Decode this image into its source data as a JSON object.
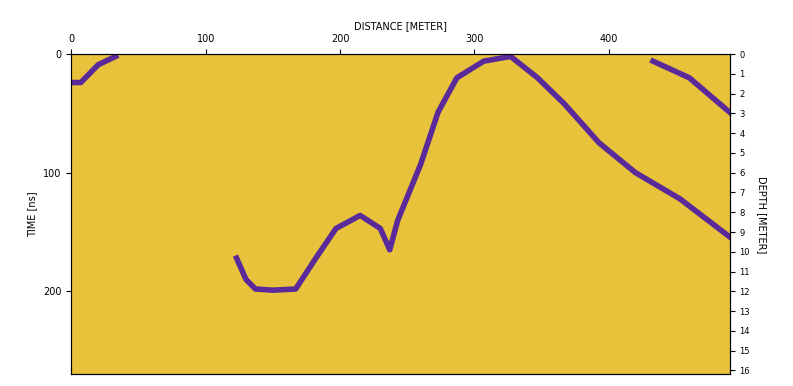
{
  "chart_data": {
    "type": "line",
    "x_label": "DISTANCE [METER]",
    "y_label": "TIME [ns]",
    "y2_label": "DEPTH [METER]",
    "xlim": [
      0,
      490
    ],
    "xticks": [
      0,
      100,
      200,
      300,
      400
    ],
    "ylim": [
      270,
      0
    ],
    "yticks": [
      0,
      100,
      200
    ],
    "y2lim": [
      16.2,
      0
    ],
    "y2ticks": [
      0,
      1,
      2,
      3,
      4,
      5,
      6,
      7,
      8,
      9,
      10,
      11,
      12,
      13,
      14,
      15,
      16
    ],
    "grid": false,
    "series": [
      {
        "color": "#5a2a9a",
        "x": [
          123,
          130,
          137,
          150,
          167,
          182,
          197,
          215,
          230,
          237,
          243,
          260,
          273,
          287,
          307,
          327,
          347,
          367,
          393,
          420,
          453,
          490
        ],
        "values": [
          172,
          190,
          198,
          199,
          198,
          172,
          147,
          136,
          147,
          165,
          140,
          93,
          49,
          20,
          6,
          2,
          20,
          42,
          75,
          100,
          122,
          154
        ]
      },
      {
        "color": "#5a2a9a",
        "x": [
          0,
          7,
          20,
          33
        ],
        "values": [
          24,
          24,
          9,
          2
        ]
      },
      {
        "color": "#5a2a9a",
        "x": [
          433,
          460,
          490
        ],
        "values": [
          6,
          20,
          49
        ]
      }
    ]
  }
}
